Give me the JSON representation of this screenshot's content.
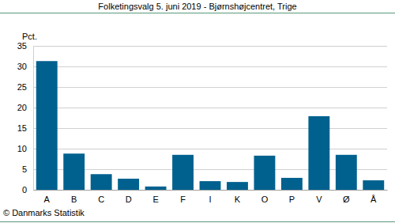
{
  "chart_data": {
    "type": "bar",
    "title": "Folketingsvalg 5. juni 2019 - Bjørnshøjcentret, Trige",
    "y_label": "Pct.",
    "source": "© Danmarks Statistik",
    "categories": [
      "A",
      "B",
      "C",
      "D",
      "E",
      "F",
      "I",
      "K",
      "O",
      "P",
      "V",
      "Ø",
      "Å"
    ],
    "values": [
      31.3,
      8.8,
      3.8,
      2.7,
      0.8,
      8.5,
      2.1,
      1.9,
      8.3,
      2.9,
      17.9,
      8.5,
      2.3
    ],
    "color": "#00618f",
    "ylim": [
      0,
      35
    ],
    "yticks": [
      0,
      5,
      10,
      15,
      20,
      25,
      30,
      35
    ],
    "grid": true
  }
}
